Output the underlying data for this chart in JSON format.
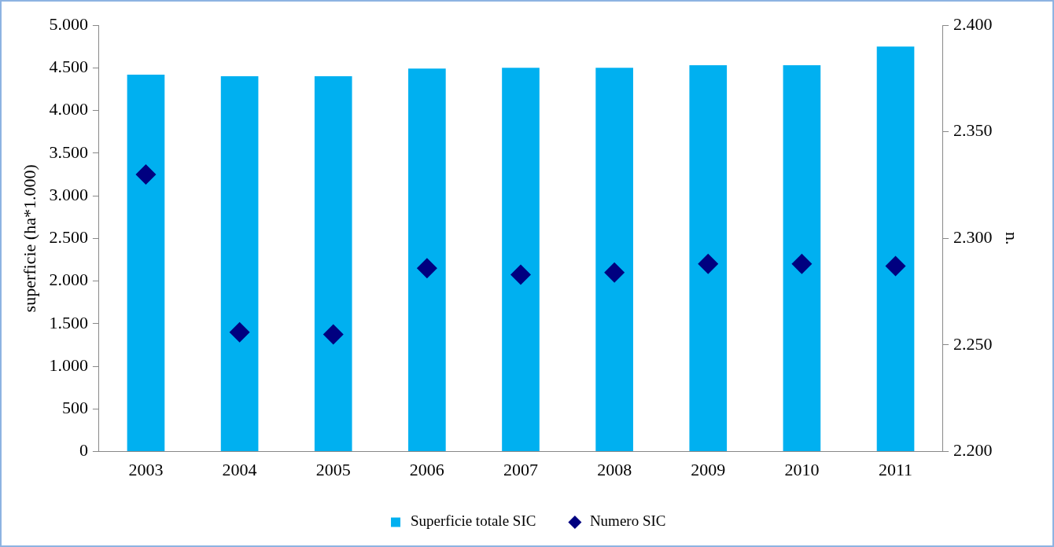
{
  "chart_data": {
    "type": "bar",
    "ylabel": "superficie (ha*1.000)",
    "y2label": "n.",
    "categories": [
      "2003",
      "2004",
      "2005",
      "2006",
      "2007",
      "2008",
      "2009",
      "2010",
      "2011"
    ],
    "series": [
      {
        "name": "Superficie totale SIC",
        "color": "#00b0f0",
        "values": [
          4420,
          4400,
          4400,
          4490,
          4500,
          4500,
          4530,
          4530,
          4750
        ]
      },
      {
        "name": "Numero SIC",
        "type": "scatter",
        "axis": "y2",
        "marker": "diamond",
        "color": "#000080",
        "values": [
          2330,
          2256,
          2255,
          2286,
          2283,
          2284,
          2288,
          2288,
          2287
        ]
      }
    ],
    "ylim": [
      0,
      5000
    ],
    "yticks": [
      0,
      500,
      {
        "value": 1000,
        "label": "1.000"
      },
      {
        "value": 1500,
        "label": "1.500"
      },
      {
        "value": 2000,
        "label": "2.000"
      },
      {
        "value": 2500,
        "label": "2.500"
      },
      {
        "value": 3000,
        "label": "3.000"
      },
      {
        "value": 3500,
        "label": "3.500"
      },
      {
        "value": 4000,
        "label": "4.000"
      },
      {
        "value": 4500,
        "label": "4.500"
      },
      {
        "value": 5000,
        "label": "5.000"
      }
    ],
    "y2lim": [
      2200,
      2400
    ],
    "y2ticks": [
      {
        "value": 2200,
        "label": "2.200"
      },
      {
        "value": 2250,
        "label": "2.250"
      },
      {
        "value": 2300,
        "label": "2.300"
      },
      {
        "value": 2350,
        "label": "2.350"
      },
      {
        "value": 2400,
        "label": "2.400"
      }
    ],
    "grid": false,
    "legend": "bottom"
  }
}
